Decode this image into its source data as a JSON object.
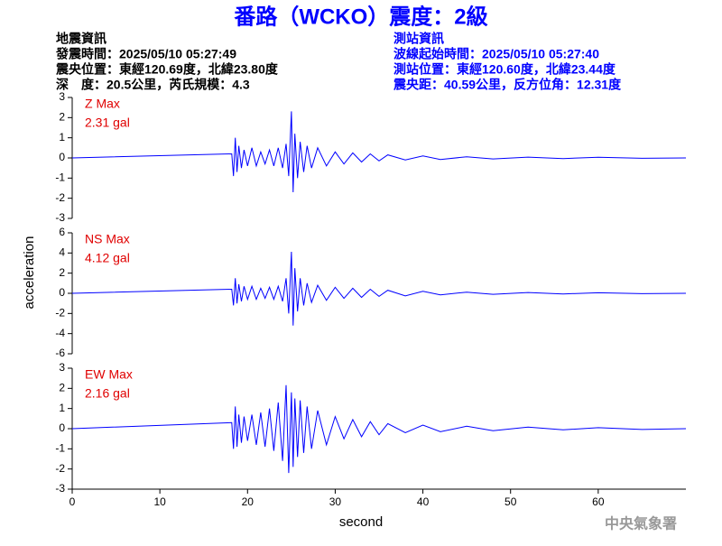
{
  "title": "番路（WCKO）震度：2級",
  "event_info": [
    "地震資訊",
    "發震時間：2025/05/10 05:27:49",
    "震央位置：東經120.69度，北緯23.80度",
    "深　度：20.5公里，芮氏規模：4.3"
  ],
  "station_info": [
    "測站資訊",
    "波線起始時間：2025/05/10 05:27:40",
    "測站位置：東經120.60度，北緯23.44度",
    "震央距：40.59公里，反方位角：12.31度"
  ],
  "ylabel": "acceleration",
  "footer": "中央氣象署",
  "chart_data": [
    {
      "type": "line",
      "label": "Z Max",
      "max_label": "2.31 gal",
      "color": "#0000ff",
      "xlim": [
        0,
        70
      ],
      "ylim": [
        -3,
        3
      ],
      "yticks": [
        -3,
        -2,
        -1,
        0,
        1,
        2,
        3
      ],
      "x": [
        0,
        18.2,
        18.4,
        18.6,
        18.8,
        19.0,
        19.3,
        19.6,
        20,
        20.5,
        21,
        21.5,
        22,
        22.5,
        23,
        23.5,
        24,
        24.4,
        24.7,
        25.0,
        25.2,
        25.4,
        25.7,
        26,
        26.4,
        26.8,
        27.3,
        28,
        29,
        30,
        31,
        32,
        33,
        34,
        35,
        36,
        38,
        40,
        42,
        45,
        48,
        52,
        56,
        60,
        65,
        70
      ],
      "values": [
        0,
        0.2,
        -0.9,
        1.0,
        -0.7,
        0.6,
        -0.5,
        0.4,
        -0.4,
        0.5,
        -0.4,
        0.3,
        -0.3,
        0.4,
        -0.4,
        0.5,
        -0.5,
        0.7,
        -0.9,
        2.31,
        -1.7,
        1.2,
        -1.0,
        0.8,
        -0.7,
        0.6,
        -0.5,
        0.5,
        -0.4,
        0.3,
        -0.3,
        0.25,
        -0.2,
        0.2,
        -0.15,
        0.15,
        -0.1,
        0.1,
        -0.08,
        0.06,
        -0.05,
        0.04,
        -0.03,
        0.03,
        -0.02,
        0
      ]
    },
    {
      "type": "line",
      "label": "NS Max",
      "max_label": "4.12 gal",
      "color": "#0000ff",
      "xlim": [
        0,
        70
      ],
      "ylim": [
        -6,
        6
      ],
      "yticks": [
        -6,
        -4,
        -2,
        0,
        2,
        4,
        6
      ],
      "x": [
        0,
        18.2,
        18.4,
        18.6,
        18.8,
        19.0,
        19.3,
        19.6,
        20,
        20.5,
        21,
        21.5,
        22,
        22.5,
        23,
        23.5,
        24,
        24.4,
        24.7,
        25.0,
        25.2,
        25.4,
        25.7,
        26,
        26.4,
        26.8,
        27.3,
        28,
        29,
        30,
        31,
        32,
        33,
        34,
        35,
        36,
        38,
        40,
        42,
        45,
        48,
        52,
        56,
        60,
        65,
        70
      ],
      "values": [
        0,
        0.4,
        -1.2,
        1.5,
        -1.0,
        0.9,
        -0.8,
        0.7,
        -0.6,
        0.7,
        -0.6,
        0.5,
        -0.5,
        0.6,
        -0.6,
        0.7,
        -0.8,
        1.5,
        -2.0,
        4.12,
        -3.2,
        2.5,
        -1.8,
        1.5,
        -1.2,
        1.0,
        -0.9,
        0.8,
        -0.7,
        0.6,
        -0.5,
        0.5,
        -0.4,
        0.4,
        -0.3,
        0.3,
        -0.25,
        0.2,
        -0.15,
        0.12,
        -0.1,
        0.08,
        -0.06,
        0.05,
        -0.04,
        0
      ]
    },
    {
      "type": "line",
      "label": "EW Max",
      "max_label": "2.16 gal",
      "color": "#0000ff",
      "xlim": [
        0,
        70
      ],
      "ylim": [
        -3,
        3
      ],
      "yticks": [
        -3,
        -2,
        -1,
        0,
        1,
        2,
        3
      ],
      "xticks": [
        0,
        10,
        20,
        30,
        40,
        50,
        60
      ],
      "xlabel": "second",
      "x": [
        0,
        18.2,
        18.4,
        18.6,
        18.8,
        19.0,
        19.3,
        19.6,
        20,
        20.5,
        21,
        21.5,
        22,
        22.5,
        23,
        23.5,
        24,
        24.4,
        24.7,
        25.0,
        25.2,
        25.4,
        25.7,
        26,
        26.4,
        26.8,
        27.3,
        28,
        29,
        30,
        31,
        32,
        33,
        34,
        35,
        36,
        38,
        40,
        42,
        45,
        48,
        52,
        56,
        60,
        65,
        70
      ],
      "values": [
        0,
        0.3,
        -1.0,
        1.1,
        -0.9,
        0.7,
        -0.7,
        0.6,
        -0.6,
        0.7,
        -0.8,
        0.8,
        -0.9,
        1.0,
        -1.1,
        1.3,
        -1.6,
        2.16,
        -2.2,
        1.8,
        -1.9,
        1.5,
        -1.4,
        1.4,
        -1.2,
        1.1,
        -1.0,
        0.9,
        -0.8,
        0.6,
        -0.5,
        0.45,
        -0.4,
        0.35,
        -0.3,
        0.25,
        -0.2,
        0.18,
        -0.15,
        0.12,
        -0.1,
        0.08,
        -0.06,
        0.05,
        -0.04,
        0
      ]
    }
  ]
}
